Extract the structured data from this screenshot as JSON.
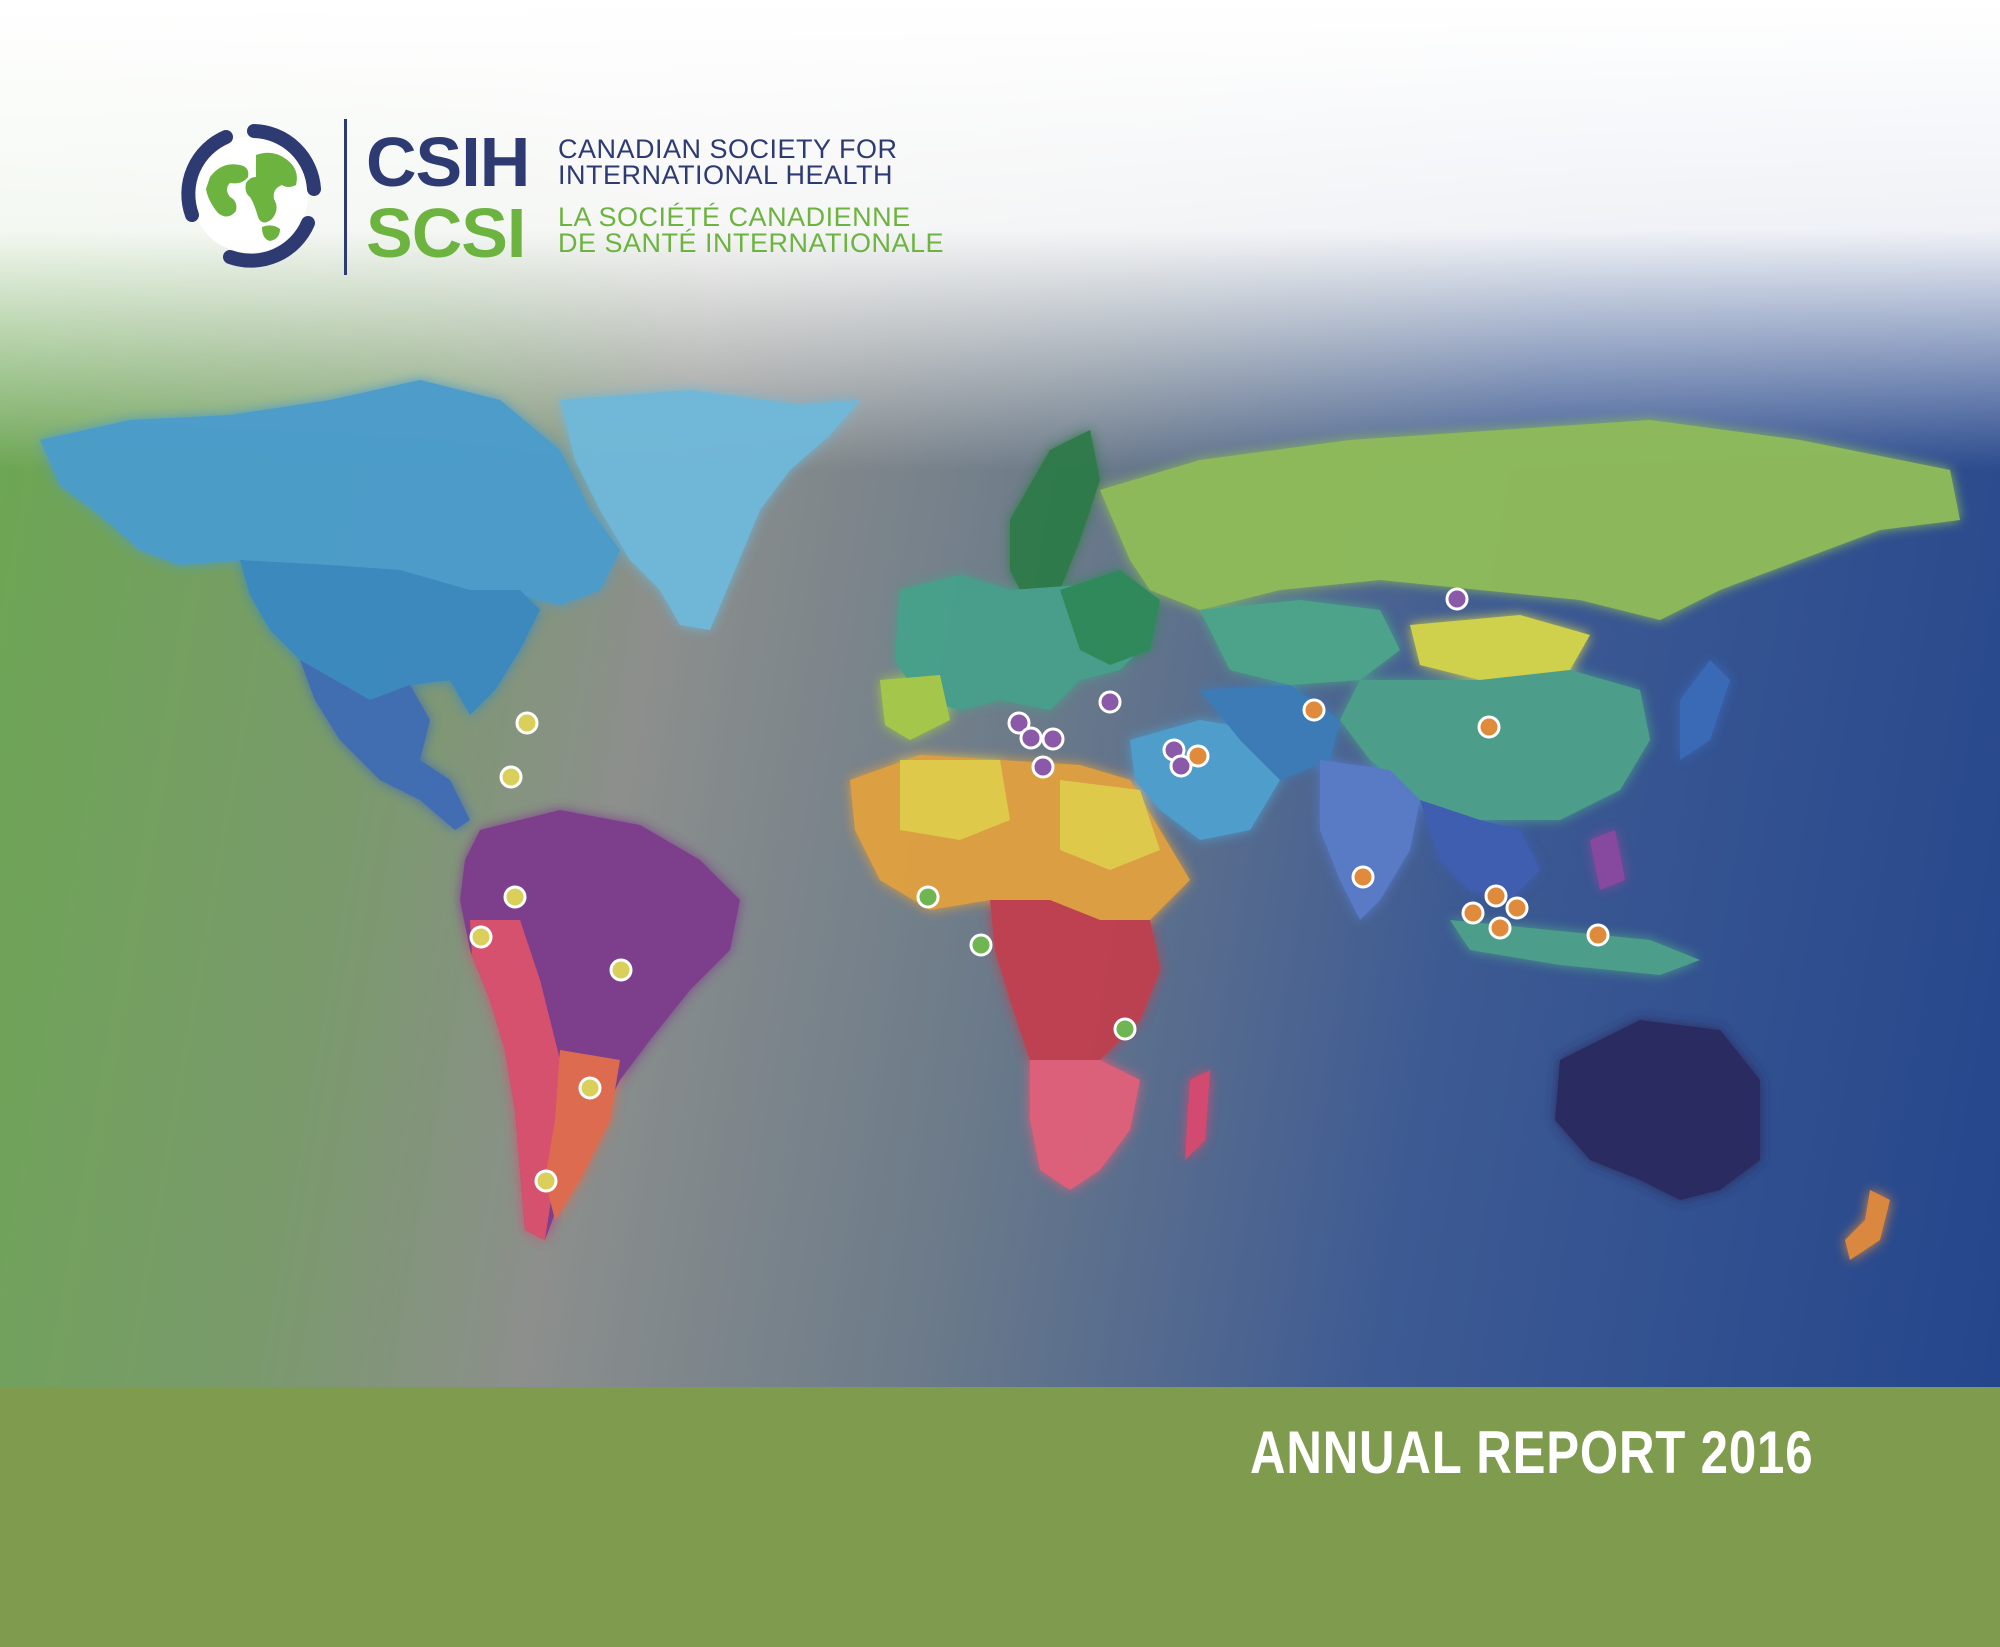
{
  "logo": {
    "acronym_en": "CSIH",
    "acronym_fr": "SCSI",
    "name_en_line1": "CANADIAN SOCIETY FOR",
    "name_en_line2": "INTERNATIONAL HEALTH",
    "name_fr_line1": "LA SOCIÉTÉ CANADIENNE",
    "name_fr_line2": "DE SANTÉ INTERNATIONALE",
    "colors": {
      "navy": "#2e3a72",
      "green": "#6db33f"
    }
  },
  "cover": {
    "title": "ANNUAL REPORT 2016",
    "band_color": "#7e9b4e"
  },
  "map": {
    "marker_legend_colors": {
      "americas": "#d9cf5a",
      "europe": "#8a5aa8",
      "africa": "#6fb552",
      "asia": "#e08a3c"
    }
  }
}
